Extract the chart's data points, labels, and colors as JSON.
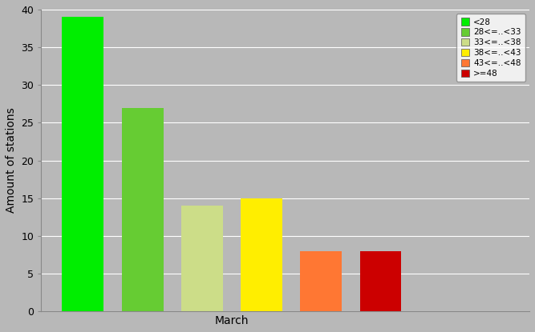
{
  "bars": [
    {
      "label": "<28",
      "value": 39,
      "color": "#00ee00"
    },
    {
      "label": "28<=..<33",
      "value": 27,
      "color": "#66cc33"
    },
    {
      "label": "33<=..<38",
      "value": 14,
      "color": "#ccdd88"
    },
    {
      "label": "38<=..<43",
      "value": 15,
      "color": "#ffee00"
    },
    {
      "label": "43<=..<48",
      "value": 8,
      "color": "#ff7733"
    },
    {
      "label": ">=48",
      "value": 8,
      "color": "#cc0000"
    }
  ],
  "ylabel": "Amount of stations",
  "xlabel": "March",
  "ylim": [
    0,
    40
  ],
  "yticks": [
    0,
    5,
    10,
    15,
    20,
    25,
    30,
    35,
    40
  ],
  "background_color": "#b8b8b8",
  "plot_bg_color": "#b8b8b8",
  "legend_fontsize": 7.5,
  "ylabel_fontsize": 10,
  "xlabel_fontsize": 10,
  "bar_width": 0.7,
  "bar_positions": [
    1,
    2,
    3,
    4,
    5,
    6
  ],
  "xlim": [
    0.3,
    8.5
  ],
  "xtick_pos": 3.5
}
